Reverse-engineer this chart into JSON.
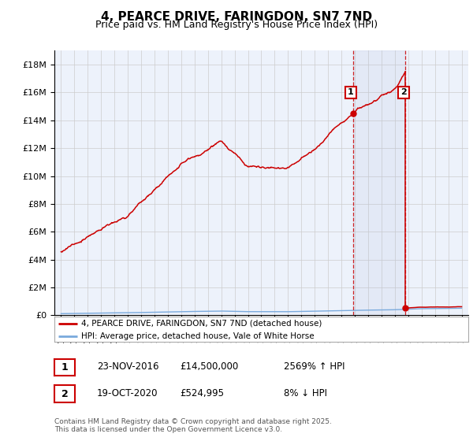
{
  "title": "4, PEARCE DRIVE, FARINGDON, SN7 7ND",
  "subtitle": "Price paid vs. HM Land Registry's House Price Index (HPI)",
  "legend_line1": "4, PEARCE DRIVE, FARINGDON, SN7 7ND (detached house)",
  "legend_line2": "HPI: Average price, detached house, Vale of White Horse",
  "annotation1_label": "1",
  "annotation1_date": "23-NOV-2016",
  "annotation1_price": "£14,500,000",
  "annotation1_hpi": "2569% ↑ HPI",
  "annotation1_year": 2016.9,
  "annotation1_value": 14500000,
  "annotation2_label": "2",
  "annotation2_date": "19-OCT-2020",
  "annotation2_price": "£524,995",
  "annotation2_hpi": "8% ↓ HPI",
  "annotation2_year": 2020.8,
  "annotation2_value": 524995,
  "footnote": "Contains HM Land Registry data © Crown copyright and database right 2025.\nThis data is licensed under the Open Government Licence v3.0.",
  "hpi_color": "#7aaadd",
  "price_color": "#cc0000",
  "background_color": "#edf2fb",
  "plot_bg_color": "#ffffff",
  "ylim_max": 19000000,
  "ylim_min": 0,
  "xlim_min": 1994.5,
  "xlim_max": 2025.5
}
